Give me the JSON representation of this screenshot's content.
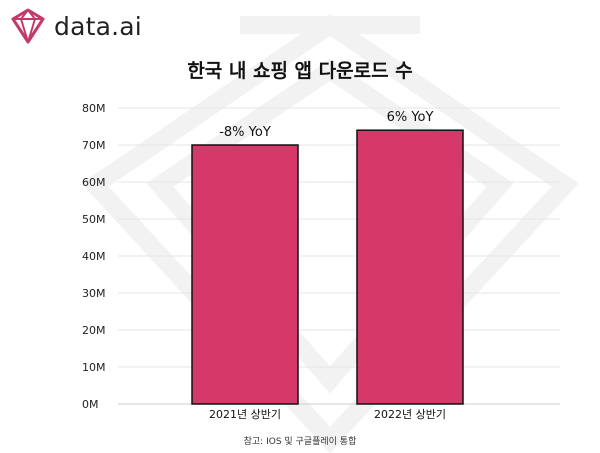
{
  "brand": {
    "name": "data.ai",
    "accent": "#d7386a"
  },
  "chart_data": {
    "type": "bar",
    "title": "한국 내 쇼핑 앱 다운로드 수",
    "categories": [
      "2021년 상반기",
      "2022년 상반기"
    ],
    "values": [
      70000000,
      74000000
    ],
    "annotations": [
      "-8% YoY",
      "6% YoY"
    ],
    "ylim": [
      0,
      80000000
    ],
    "yticks": [
      {
        "value": 0,
        "label": "0M"
      },
      {
        "value": 10000000,
        "label": "10M"
      },
      {
        "value": 20000000,
        "label": "20M"
      },
      {
        "value": 30000000,
        "label": "30M"
      },
      {
        "value": 40000000,
        "label": "40M"
      },
      {
        "value": 50000000,
        "label": "50M"
      },
      {
        "value": 60000000,
        "label": "60M"
      },
      {
        "value": 70000000,
        "label": "70M"
      },
      {
        "value": 80000000,
        "label": "80M"
      }
    ],
    "grid": true,
    "bar_color": "#d7386a",
    "bar_outline": "#111111"
  },
  "note": "참고: IOS 및 구글플레이 통합"
}
